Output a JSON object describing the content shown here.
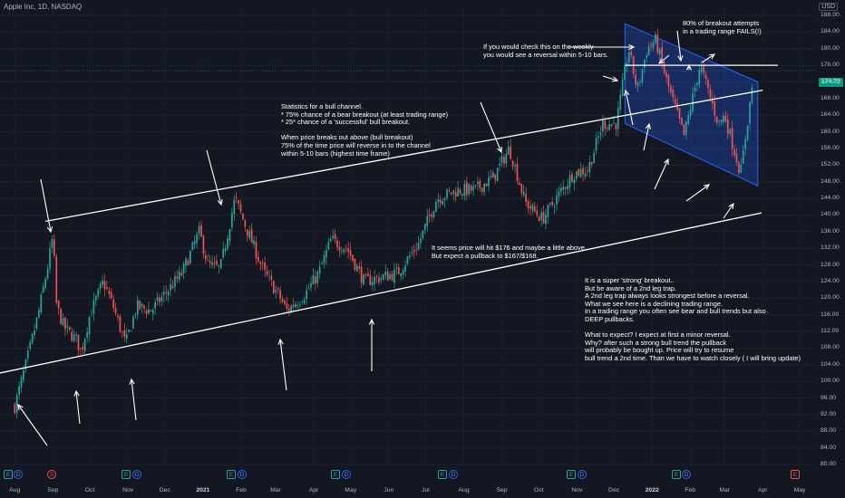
{
  "header": {
    "symbol": "Apple Inc, 1D, NASDAQ",
    "currency": "USD"
  },
  "last_price_label": "174.72",
  "colors": {
    "up": "#26a69a",
    "down": "#ef5350",
    "channel": "#ffffff",
    "box": "#2962ff"
  },
  "annotations": [
    "80% of breakout attempts\nin a trading range FAILS(!)",
    "If you would check this on the weekly\nyou would see a reversal within 5-10 bars.",
    "Statistics for a bull channel.\n* 75% chance of a bear breakout (at least trading range)\n* 25* chance of a 'successful' bull breakout.\n\nWhen price breaks out above (bull breakout)\n75% of the time price will reverse in to the channel\nwithin 5-10 bars (highest time frame)",
    "It seems price will hit $176 and maybe a little above..\nBut expect a pullback to $167/$168.",
    "It is a super 'strong' breakout..\nBut be aware of a 2nd leg trap.\nA 2nd leg trap always looks strongest before a reversal.\nWhat we see here is a declining trading range.\nIn a trading range you often see bear and bull trends but also\nDEEP pullbacks.\n\nWhat to expect? I expect at first a minor reversal.\nWhy? after such a strong bull trend the pullback\nwill probably be bought up. Price will try to resume\nbull trend a 2nd time. Than we have to watch closely ( I will bring update)"
  ],
  "events": [
    "E",
    "D",
    "S",
    "E",
    "D",
    "E",
    "D",
    "E",
    "D",
    "E",
    "D",
    "E",
    "D",
    "E",
    "D",
    "E"
  ],
  "chart_data": {
    "type": "candlestick",
    "title": "Apple Inc, 1D, NASDAQ",
    "x_tick_labels": [
      "Aug",
      "Sep",
      "Oct",
      "Nov",
      "Dec",
      "2021",
      "Feb",
      "Mar",
      "Apr",
      "May",
      "Jun",
      "Jul",
      "Aug",
      "Sep",
      "Oct",
      "Nov",
      "Dec",
      "2022",
      "Feb",
      "Mar",
      "Apr",
      "May"
    ],
    "y_tick_labels": [
      "80.00",
      "84.00",
      "88.00",
      "92.00",
      "96.00",
      "100.00",
      "104.00",
      "108.00",
      "112.00",
      "116.00",
      "120.00",
      "124.00",
      "128.00",
      "132.00",
      "136.00",
      "140.00",
      "144.00",
      "148.00",
      "152.00",
      "156.00",
      "160.00",
      "164.00",
      "168.00",
      "172.00",
      "176.00",
      "180.00",
      "184.00",
      "188.00"
    ],
    "ylim": [
      80,
      188
    ],
    "last_price": 174.72,
    "horizontal_line": 176,
    "close_path": [
      [
        "2020-08-01",
        94
      ],
      [
        "2020-08-10",
        104
      ],
      [
        "2020-08-20",
        116
      ],
      [
        "2020-08-28",
        128
      ],
      [
        "2020-09-01",
        135
      ],
      [
        "2020-09-04",
        118
      ],
      [
        "2020-09-10",
        113
      ],
      [
        "2020-09-20",
        110
      ],
      [
        "2020-09-24",
        107
      ],
      [
        "2020-10-01",
        116
      ],
      [
        "2020-10-12",
        124
      ],
      [
        "2020-10-20",
        118
      ],
      [
        "2020-10-30",
        109
      ],
      [
        "2020-11-08",
        118
      ],
      [
        "2020-11-20",
        117
      ],
      [
        "2020-12-01",
        121
      ],
      [
        "2020-12-15",
        126
      ],
      [
        "2020-12-29",
        136
      ],
      [
        "2021-01-05",
        128
      ],
      [
        "2021-01-15",
        127
      ],
      [
        "2021-01-27",
        144
      ],
      [
        "2021-02-05",
        137
      ],
      [
        "2021-02-20",
        126
      ],
      [
        "2021-03-05",
        120
      ],
      [
        "2021-03-10",
        117
      ],
      [
        "2021-03-25",
        121
      ],
      [
        "2021-04-05",
        126
      ],
      [
        "2021-04-15",
        134
      ],
      [
        "2021-04-28",
        132
      ],
      [
        "2021-05-12",
        124
      ],
      [
        "2021-05-25",
        125
      ],
      [
        "2021-06-08",
        126
      ],
      [
        "2021-06-25",
        133
      ],
      [
        "2021-07-10",
        144
      ],
      [
        "2021-07-28",
        146
      ],
      [
        "2021-08-10",
        146
      ],
      [
        "2021-08-25",
        149
      ],
      [
        "2021-09-07",
        156
      ],
      [
        "2021-09-20",
        143
      ],
      [
        "2021-10-04",
        139
      ],
      [
        "2021-10-15",
        144
      ],
      [
        "2021-10-29",
        150
      ],
      [
        "2021-11-10",
        151
      ],
      [
        "2021-11-22",
        162
      ],
      [
        "2021-12-03",
        162
      ],
      [
        "2021-12-13",
        180
      ],
      [
        "2021-12-20",
        170
      ],
      [
        "2021-12-28",
        180
      ],
      [
        "2022-01-04",
        182
      ],
      [
        "2022-01-13",
        172
      ],
      [
        "2022-01-27",
        159
      ],
      [
        "2022-02-09",
        176
      ],
      [
        "2022-02-24",
        162
      ],
      [
        "2022-03-01",
        164
      ],
      [
        "2022-03-14",
        150
      ],
      [
        "2022-03-25",
        174.72
      ]
    ],
    "channel_lines": [
      {
        "name": "upper",
        "from": [
          "2020-08-26",
          138.5
        ],
        "to": [
          "2022-04-01",
          170
        ]
      },
      {
        "name": "lower",
        "from": [
          "2020-07-20",
          102
        ],
        "to": [
          "2022-03-31",
          140.5
        ]
      }
    ],
    "trading_range_box": {
      "corners": [
        [
          "2021-12-10",
          186
        ],
        [
          "2022-03-28",
          172
        ],
        [
          "2022-03-28",
          147
        ],
        [
          "2021-12-10",
          162
        ]
      ]
    }
  }
}
